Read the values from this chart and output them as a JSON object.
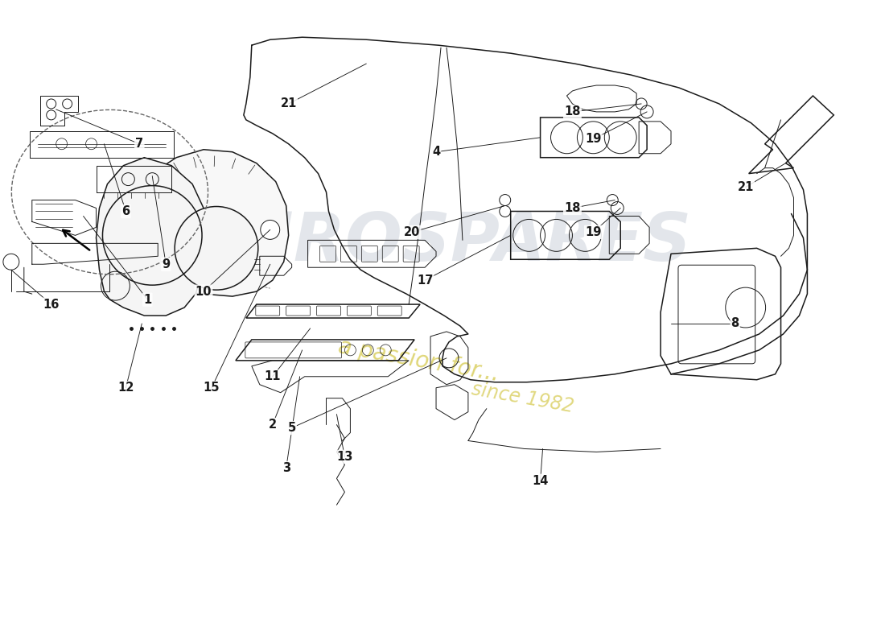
{
  "bg_color": "#ffffff",
  "line_color": "#1a1a1a",
  "watermark1": "EUROSPARES",
  "watermark2": "a passion for...",
  "watermark3": "since 1982",
  "wm_color1": "#c8cfd8",
  "wm_color2": "#d4c84a",
  "labels": [
    [
      "1",
      1.82,
      4.28
    ],
    [
      "2",
      3.38,
      2.72
    ],
    [
      "3",
      3.55,
      2.18
    ],
    [
      "4",
      5.42,
      6.12
    ],
    [
      "5",
      3.62,
      2.68
    ],
    [
      "6",
      1.55,
      5.38
    ],
    [
      "7",
      1.72,
      6.22
    ],
    [
      "8",
      9.15,
      3.98
    ],
    [
      "9",
      2.05,
      4.72
    ],
    [
      "10",
      2.52,
      4.38
    ],
    [
      "11",
      3.38,
      3.32
    ],
    [
      "12",
      1.55,
      3.18
    ],
    [
      "13",
      4.28,
      2.32
    ],
    [
      "14",
      6.72,
      2.02
    ],
    [
      "15",
      2.62,
      3.18
    ],
    [
      "16",
      0.62,
      4.22
    ],
    [
      "17",
      5.28,
      4.52
    ],
    [
      "18",
      7.12,
      6.62
    ],
    [
      "18",
      7.12,
      5.42
    ],
    [
      "19",
      7.38,
      6.28
    ],
    [
      "19",
      7.38,
      5.12
    ],
    [
      "20",
      5.12,
      5.12
    ],
    [
      "21",
      3.58,
      6.72
    ],
    [
      "21",
      9.28,
      5.68
    ]
  ]
}
